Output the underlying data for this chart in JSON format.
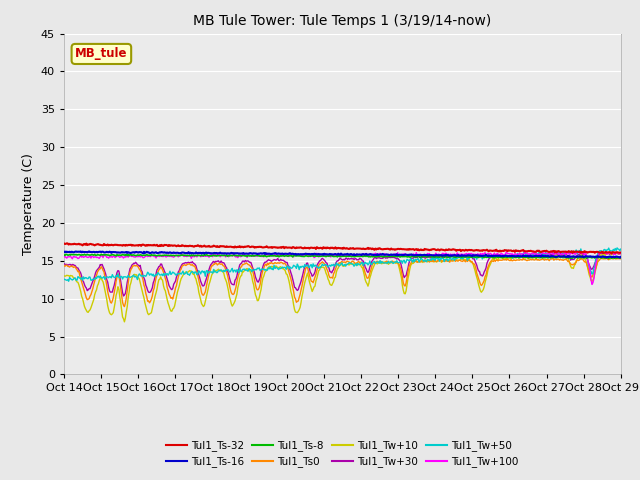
{
  "title": "MB Tule Tower: Tule Temps 1 (3/19/14-now)",
  "ylabel": "Temperature (C)",
  "ylim": [
    0,
    45
  ],
  "yticks": [
    0,
    5,
    10,
    15,
    20,
    25,
    30,
    35,
    40,
    45
  ],
  "xtick_labels": [
    "Oct 14",
    "Oct 15",
    "Oct 16",
    "Oct 17",
    "Oct 18",
    "Oct 19",
    "Oct 20",
    "Oct 21",
    "Oct 22",
    "Oct 23",
    "Oct 24",
    "Oct 25",
    "Oct 26",
    "Oct 27",
    "Oct 28",
    "Oct 29"
  ],
  "fig_bg": "#e8e8e8",
  "ax_bg": "#ebebeb",
  "grid_color": "#ffffff",
  "series_colors": {
    "Tul1_Ts-32": "#dd0000",
    "Tul1_Ts-16": "#0000cc",
    "Tul1_Ts-8": "#00bb00",
    "Tul1_Ts0": "#ff8800",
    "Tul1_Tw+10": "#cccc00",
    "Tul1_Tw+30": "#aa00aa",
    "Tul1_Tw+50": "#00cccc",
    "Tul1_Tw+100": "#ff00ff"
  },
  "ann_text": "MB_tule",
  "ann_fc": "#ffffcc",
  "ann_ec": "#999900",
  "ann_tc": "#cc0000"
}
